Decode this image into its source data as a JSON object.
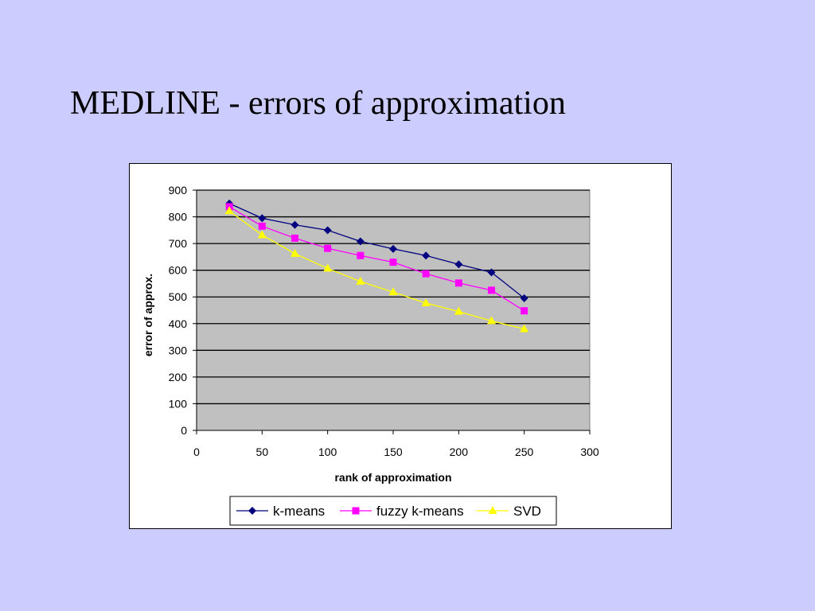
{
  "slide": {
    "title": "MEDLINE - errors of approximation"
  },
  "chart_data": {
    "type": "line",
    "title": "",
    "xlabel": "rank of approximation",
    "ylabel": "error of approx.",
    "xlim": [
      0,
      300
    ],
    "ylim": [
      0,
      900
    ],
    "x_ticks": [
      0,
      50,
      100,
      150,
      200,
      250,
      300
    ],
    "y_ticks": [
      0,
      100,
      200,
      300,
      400,
      500,
      600,
      700,
      800,
      900
    ],
    "grid": "horizontal",
    "plot_background": "#c0c0c0",
    "legend": "bottom",
    "x": [
      25,
      50,
      75,
      100,
      125,
      150,
      175,
      200,
      225,
      250
    ],
    "series": [
      {
        "name": "k-means",
        "marker": "diamond",
        "color": "#000080",
        "values": [
          850,
          795,
          770,
          750,
          708,
          680,
          655,
          622,
          592,
          495
        ]
      },
      {
        "name": "fuzzy k-means",
        "marker": "square",
        "color": "#ff00ff",
        "values": [
          838,
          765,
          720,
          682,
          655,
          630,
          587,
          552,
          525,
          448
        ]
      },
      {
        "name": "SVD",
        "marker": "triangle",
        "color": "#ffff00",
        "values": [
          822,
          732,
          662,
          607,
          558,
          518,
          477,
          445,
          410,
          380
        ]
      }
    ]
  }
}
